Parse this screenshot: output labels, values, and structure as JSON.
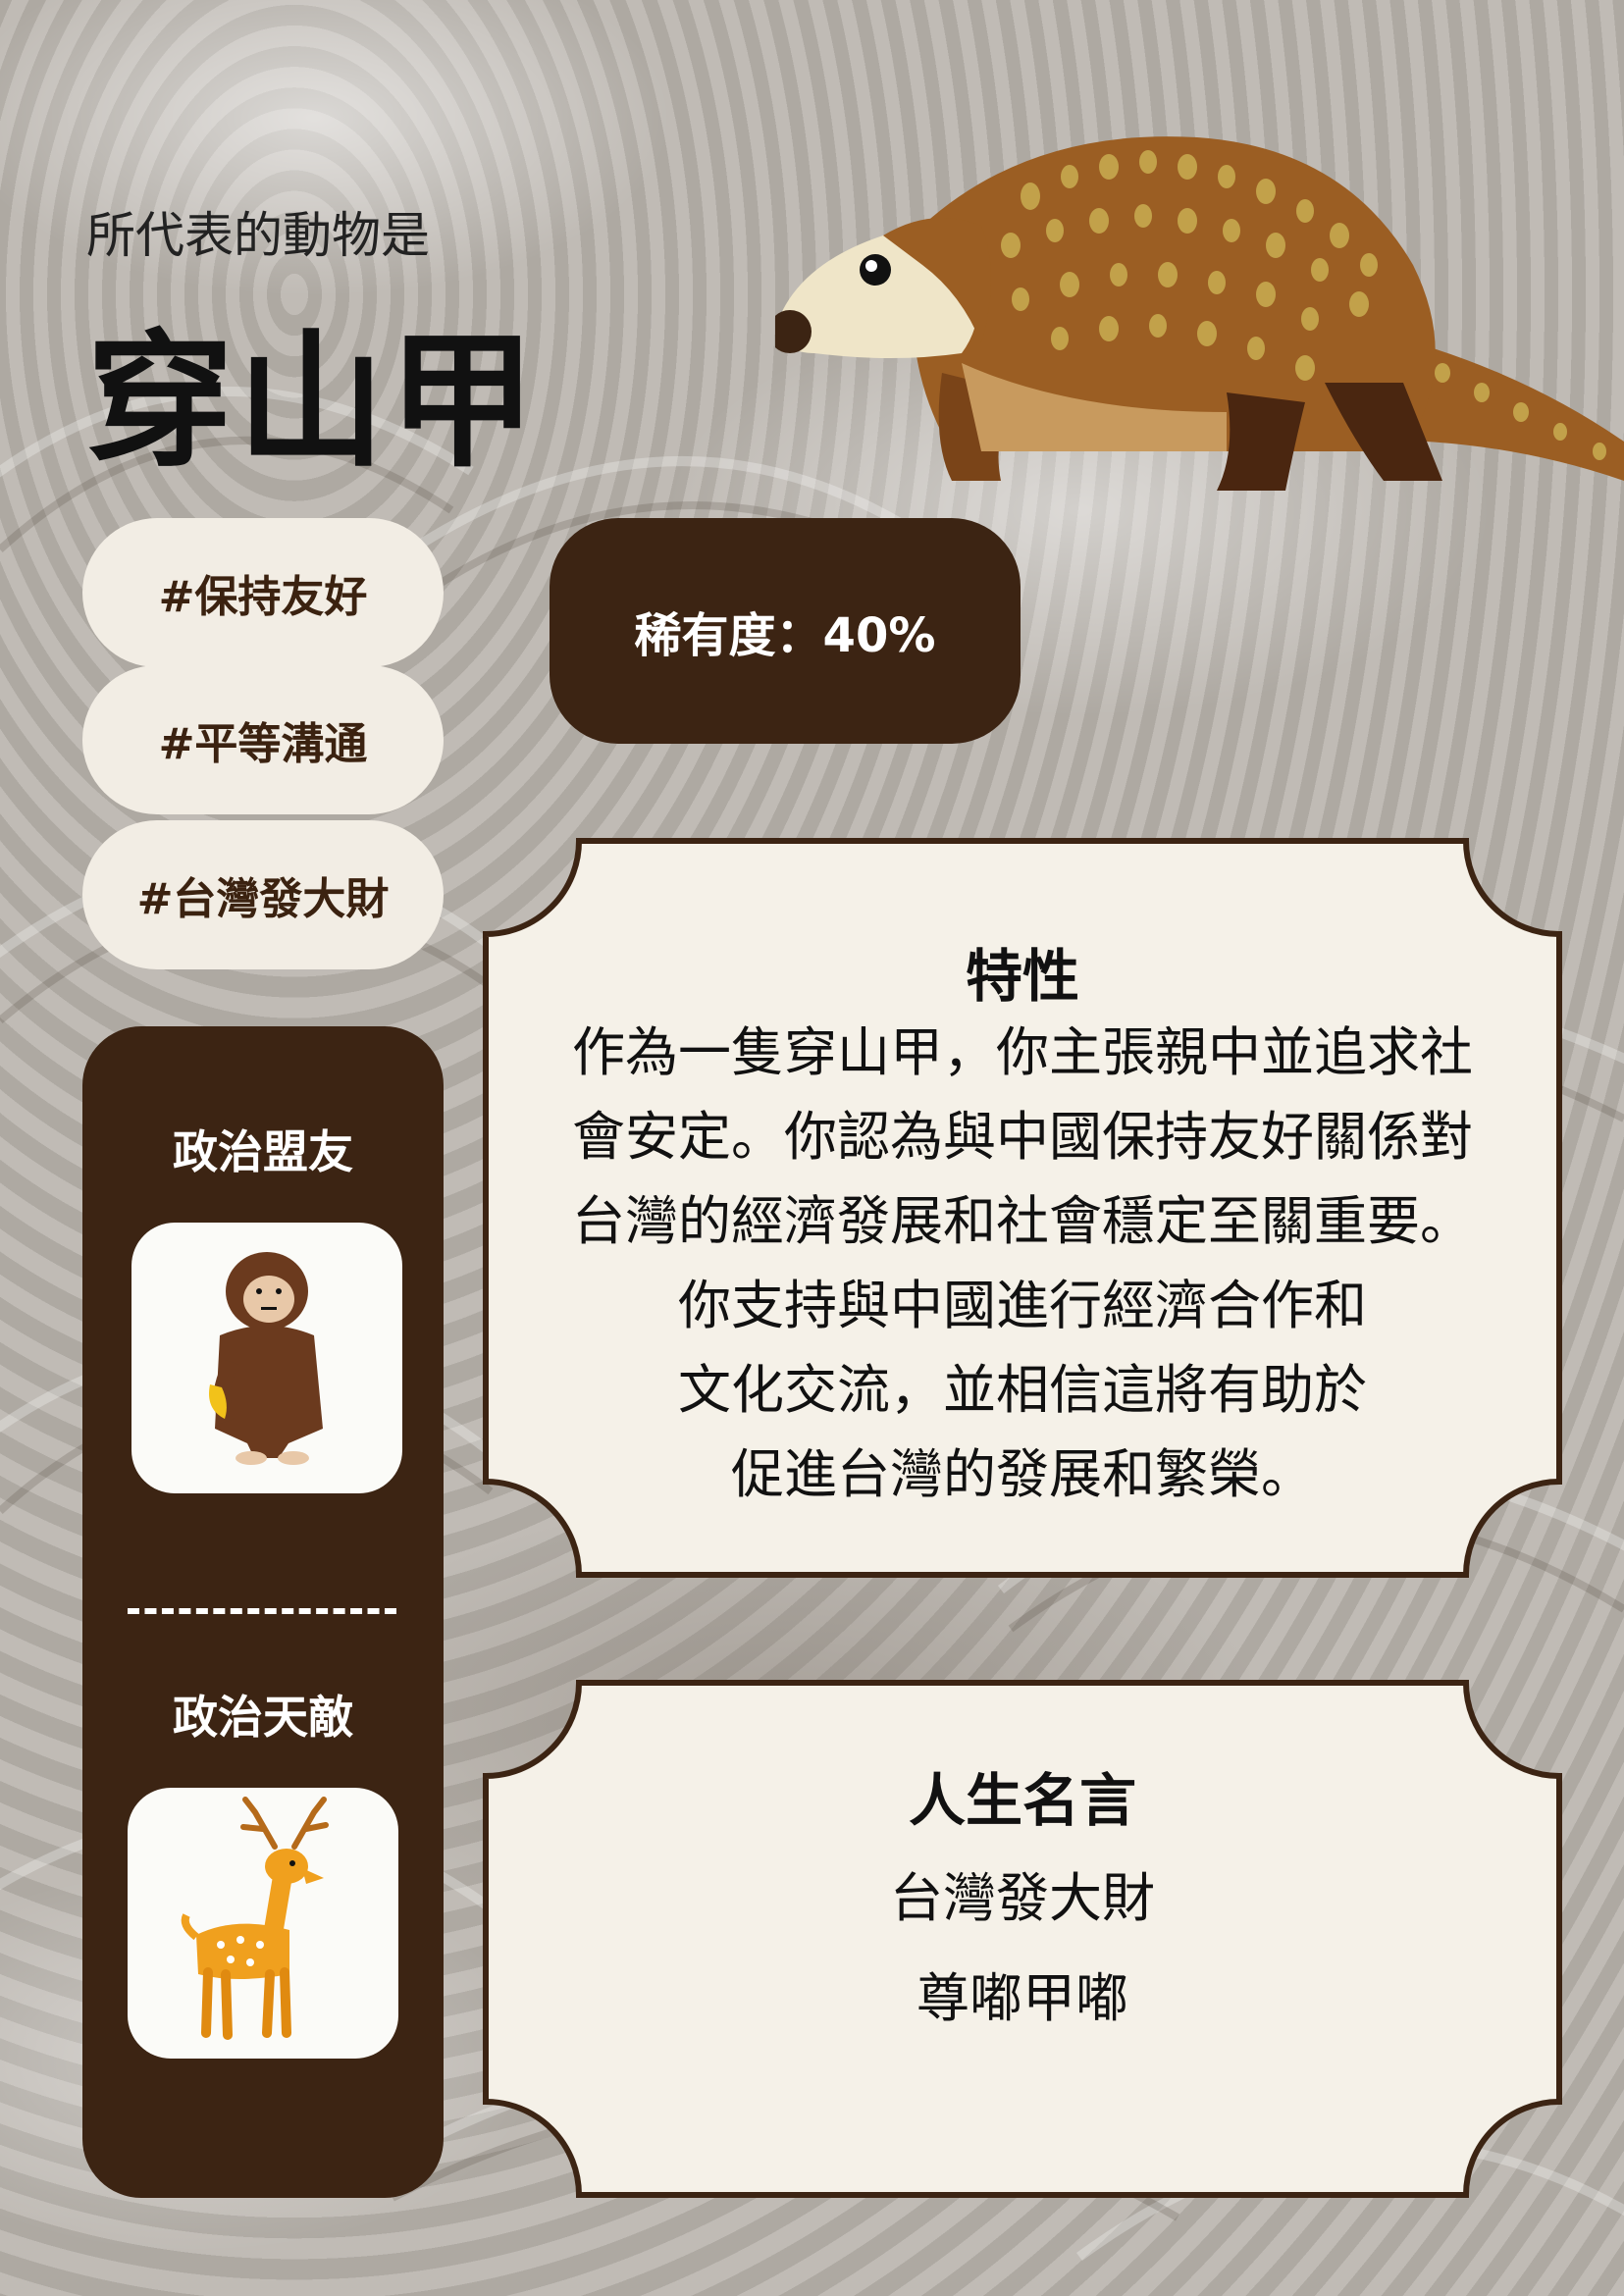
{
  "intro_text": "所代表的動物是",
  "animal_name": "穿山甲",
  "tags": [
    "#保持友好",
    "#平等溝通",
    "#台灣發大財"
  ],
  "rarity": "稀有度：40%",
  "sidebar": {
    "ally_label": "政治盟友",
    "enemy_label": "政治天敵",
    "ally_icon": "monkey-icon",
    "enemy_icon": "deer-icon"
  },
  "traits": {
    "title": "特性",
    "lines": [
      "作為一隻穿山甲，你主張親中並追求社",
      "會安定。你認為與中國保持友好關係對",
      "台灣的經濟發展和社會穩定至關重要。",
      "你支持與中國進行經濟合作和",
      "文化交流，並相信這將有助於",
      "促進台灣的發展和繁榮。"
    ]
  },
  "motto": {
    "title": "人生名言",
    "lines": [
      "台灣發大財",
      "尊嘟甲嘟"
    ]
  },
  "colors": {
    "dark_brown": "#3c2413",
    "cream": "#f2ede4",
    "pangolin": "#9b5e23",
    "pangolin_spots": "#c2a14a",
    "deer": "#f0a01e"
  }
}
